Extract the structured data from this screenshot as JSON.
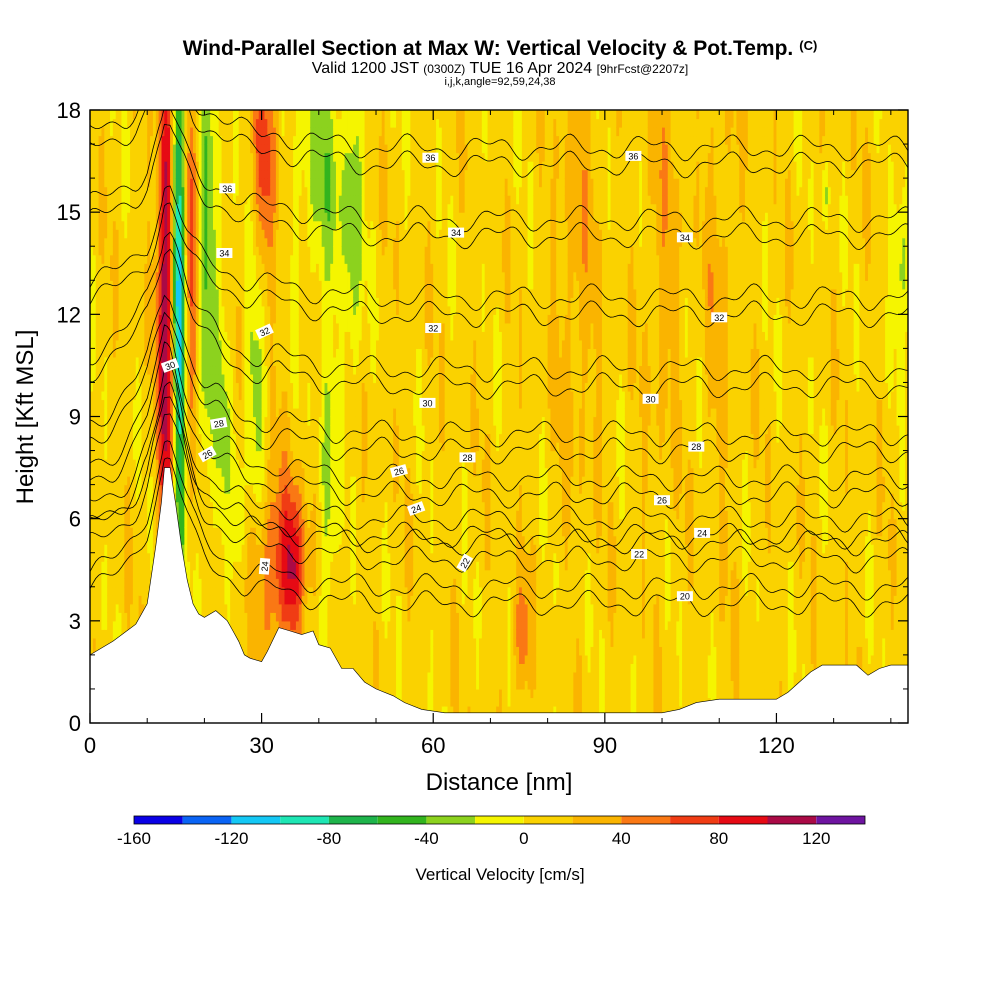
{
  "header": {
    "title": "Wind-Parallel Section at Max W: Vertical Velocity & Pot.Temp.",
    "copyright": "(C)",
    "valid_prefix": "Valid 1200 JST",
    "valid_utc": "(0300Z)",
    "valid_date": "TUE 16 Apr 2024",
    "forecast": "[9hrFcst@2207z]",
    "indices": "i,j,k,angle=92,59,24,38"
  },
  "chart_data": {
    "type": "heatmap",
    "xlabel": "Distance [nm]",
    "ylabel": "Height [Kft MSL]",
    "xlim": [
      0,
      143
    ],
    "ylim": [
      0,
      18
    ],
    "x_ticks": [
      0,
      30,
      60,
      90,
      120
    ],
    "y_ticks": [
      0,
      3,
      6,
      9,
      12,
      15,
      18
    ],
    "colorbar": {
      "title": "Vertical Velocity [cm/s]",
      "ticks": [
        -160,
        -120,
        -80,
        -40,
        0,
        40,
        80,
        120
      ],
      "range": [
        -160,
        140
      ],
      "colors": [
        "#0a00e6",
        "#0a64f5",
        "#14c8f5",
        "#1ee6b4",
        "#1eb44b",
        "#32b41e",
        "#8cd21e",
        "#f5f500",
        "#fad200",
        "#fab400",
        "#fa7814",
        "#f03c14",
        "#e60a14",
        "#aa0a46",
        "#6e14a0"
      ]
    },
    "terrain_kft": [
      [
        0,
        2.0
      ],
      [
        4,
        2.4
      ],
      [
        8,
        2.9
      ],
      [
        10,
        3.5
      ],
      [
        11.5,
        5.2
      ],
      [
        12.5,
        6.5
      ],
      [
        13,
        7.5
      ],
      [
        14,
        7.5
      ],
      [
        15,
        6.4
      ],
      [
        16,
        5.2
      ],
      [
        17,
        4.2
      ],
      [
        18,
        3.5
      ],
      [
        19,
        3.2
      ],
      [
        20,
        3.1
      ],
      [
        22,
        3.3
      ],
      [
        24,
        3.0
      ],
      [
        25,
        2.7
      ],
      [
        26,
        2.4
      ],
      [
        27,
        2.0
      ],
      [
        28,
        1.9
      ],
      [
        30,
        1.8
      ],
      [
        31,
        2.1
      ],
      [
        33,
        2.8
      ],
      [
        35,
        2.7
      ],
      [
        37,
        2.6
      ],
      [
        39,
        2.7
      ],
      [
        40,
        2.3
      ],
      [
        42,
        2.2
      ],
      [
        44,
        1.6
      ],
      [
        46,
        1.6
      ],
      [
        48,
        1.2
      ],
      [
        50,
        1.0
      ],
      [
        53,
        0.8
      ],
      [
        55,
        0.6
      ],
      [
        58,
        0.4
      ],
      [
        62,
        0.3
      ],
      [
        70,
        0.3
      ],
      [
        80,
        0.3
      ],
      [
        90,
        0.3
      ],
      [
        100,
        0.3
      ],
      [
        103,
        0.4
      ],
      [
        106,
        0.6
      ],
      [
        110,
        0.7
      ],
      [
        120,
        0.7
      ],
      [
        122,
        0.9
      ],
      [
        124,
        1.2
      ],
      [
        126,
        1.5
      ],
      [
        128,
        1.7
      ],
      [
        134,
        1.7
      ],
      [
        136,
        1.4
      ],
      [
        138,
        1.6
      ],
      [
        140,
        1.7
      ],
      [
        143,
        1.7
      ]
    ],
    "w_features": [
      {
        "x": 13.5,
        "y": 12.5,
        "sx": 1.1,
        "sy": 6.0,
        "w": 120
      },
      {
        "x": 15.5,
        "y": 13.0,
        "sx": 0.9,
        "sy": 5.5,
        "w": -150
      },
      {
        "x": 17.5,
        "y": 14.0,
        "sx": 1.0,
        "sy": 4.0,
        "w": 60
      },
      {
        "x": 20.5,
        "y": 13.5,
        "sx": 1.2,
        "sy": 5.0,
        "w": -50
      },
      {
        "x": 23.5,
        "y": 9.0,
        "sx": 1.0,
        "sy": 3.0,
        "w": -30
      },
      {
        "x": 30.5,
        "y": 16.5,
        "sx": 1.5,
        "sy": 2.5,
        "w": 55
      },
      {
        "x": 33.5,
        "y": 4.7,
        "sx": 3.2,
        "sy": 1.8,
        "w": 65
      },
      {
        "x": 35.5,
        "y": 4.5,
        "sx": 1.0,
        "sy": 1.4,
        "w": 40
      },
      {
        "x": 29.0,
        "y": 10.0,
        "sx": 1.2,
        "sy": 3.0,
        "w": -38
      },
      {
        "x": 41.5,
        "y": 6.5,
        "sx": 1.0,
        "sy": 3.0,
        "w": -45
      },
      {
        "x": 41.0,
        "y": 16.0,
        "sx": 3.5,
        "sy": 2.5,
        "w": -38
      },
      {
        "x": 46.0,
        "y": 14.0,
        "sx": 1.0,
        "sy": 3.0,
        "w": -40
      },
      {
        "x": 26.0,
        "y": 6.0,
        "sx": 0.6,
        "sy": 1.2,
        "w": -40
      },
      {
        "x": 75.5,
        "y": 2.5,
        "sx": 0.9,
        "sy": 1.2,
        "w": 50
      },
      {
        "x": 85.0,
        "y": 14.0,
        "sx": 2.5,
        "sy": 5.0,
        "w": 22
      },
      {
        "x": 100.0,
        "y": 14.0,
        "sx": 2.0,
        "sy": 5.0,
        "w": 20
      },
      {
        "x": 110.0,
        "y": 13.0,
        "sx": 2.0,
        "sy": 5.0,
        "w": 18
      },
      {
        "x": 142.0,
        "y": 13.5,
        "sx": 1.2,
        "sy": 1.5,
        "w": -40
      },
      {
        "x": 128.5,
        "y": 15.5,
        "sx": 0.4,
        "sy": 0.6,
        "w": -40
      }
    ],
    "isentropes": [
      {
        "value": 20,
        "y_far": 3.5,
        "label_x": 104
      },
      {
        "value": 22,
        "y_far": 4.8,
        "label_x": 96
      },
      {
        "value": 24,
        "y_far": 5.5,
        "label_x": 107
      },
      {
        "value": 26,
        "y_far": 6.7,
        "label_x": 100
      },
      {
        "value": 28,
        "y_far": 8.0,
        "label_x": 106
      },
      {
        "value": 30,
        "y_far": 9.9,
        "label_x": 98
      },
      {
        "value": 32,
        "y_far": 12.0,
        "label_x": 110
      },
      {
        "value": 34,
        "y_far": 14.3,
        "label_x": 104
      },
      {
        "value": 36,
        "y_far": 16.4,
        "label_x": 95
      }
    ],
    "extra_labels": [
      {
        "text": "24",
        "x": 30.5,
        "y": 4.6,
        "rot": -85
      },
      {
        "text": "22",
        "x": 65.5,
        "y": 4.7,
        "rot": -60
      },
      {
        "text": "24",
        "x": 57.0,
        "y": 6.3,
        "rot": -20
      },
      {
        "text": "26",
        "x": 54.0,
        "y": 7.4,
        "rot": -15
      },
      {
        "text": "28",
        "x": 66.0,
        "y": 7.8,
        "rot": 0
      },
      {
        "text": "26",
        "x": 20.5,
        "y": 7.9,
        "rot": -30
      },
      {
        "text": "28",
        "x": 22.5,
        "y": 8.8,
        "rot": -10
      },
      {
        "text": "30",
        "x": 59.0,
        "y": 9.4,
        "rot": 0
      },
      {
        "text": "30",
        "x": 14.0,
        "y": 10.5,
        "rot": -20
      },
      {
        "text": "32",
        "x": 30.5,
        "y": 11.5,
        "rot": -25
      },
      {
        "text": "32",
        "x": 60.0,
        "y": 11.6,
        "rot": 0
      },
      {
        "text": "34",
        "x": 23.5,
        "y": 13.8,
        "rot": 0
      },
      {
        "text": "34",
        "x": 64.0,
        "y": 14.4,
        "rot": 0
      },
      {
        "text": "36",
        "x": 24.0,
        "y": 15.7,
        "rot": 0
      },
      {
        "text": "36",
        "x": 59.5,
        "y": 16.6,
        "rot": 0
      }
    ]
  }
}
